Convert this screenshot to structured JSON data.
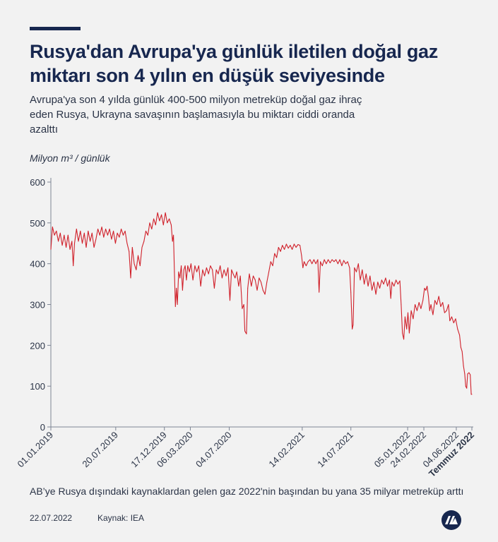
{
  "header": {
    "title": "Rusya'dan Avrupa'ya günlük iletilen doğal gaz miktarı son 4 yılın en düşük seviyesinde",
    "subtitle": "Avrupa'ya son 4 yılda günlük 400-500 milyon metreküp doğal gaz ihraç eden Rusya, Ukrayna savaşının başlamasıyla bu miktarı ciddi oranda azalttı"
  },
  "footer": {
    "note": "AB’ye Rusya dışındaki kaynaklardan gelen gaz 2022'nin başından bu yana 35 milyar metreküp arttı",
    "date": "22.07.2022",
    "source": "Kaynak: IEA"
  },
  "colors": {
    "line": "#d0202a",
    "title": "#17274f",
    "background": "#f2f2f2"
  },
  "logo_icon": "aa-logo-icon",
  "chart_data": {
    "type": "line",
    "title": "Rusya'dan Avrupa'ya günlük iletilen doğal gaz miktarı son 4 yılın en düşük seviyesinde",
    "ylabel": "Milyon m³ / günlük",
    "ylim": [
      0,
      600
    ],
    "yticks": [
      0,
      100,
      200,
      300,
      400,
      500,
      600
    ],
    "xlim": [
      "2019-01-01",
      "2022-07-22"
    ],
    "xticks": [
      {
        "date": "2019-01-01",
        "label": "01.01.2019"
      },
      {
        "date": "2019-07-20",
        "label": "20.07.2019"
      },
      {
        "date": "2019-12-17",
        "label": "17.12.2019"
      },
      {
        "date": "2020-03-06",
        "label": "06.03.2020"
      },
      {
        "date": "2020-07-04",
        "label": "04.07.2020"
      },
      {
        "date": "2021-02-14",
        "label": "14.02.2021"
      },
      {
        "date": "2021-07-14",
        "label": "14.07.2021"
      },
      {
        "date": "2022-01-05",
        "label": "05.01.2022"
      },
      {
        "date": "2022-02-24",
        "label": "24.02.2022"
      },
      {
        "date": "2022-06-04",
        "label": "04.06.2022"
      },
      {
        "date": "2022-07-22",
        "label": "Temmuz 2022",
        "bold": true
      }
    ],
    "grid": false,
    "series": [
      {
        "color": "#d0202a",
        "points": [
          [
            "2019-01-01",
            435
          ],
          [
            "2019-01-06",
            490
          ],
          [
            "2019-01-12",
            470
          ],
          [
            "2019-01-18",
            480
          ],
          [
            "2019-01-24",
            455
          ],
          [
            "2019-01-30",
            475
          ],
          [
            "2019-02-05",
            445
          ],
          [
            "2019-02-11",
            470
          ],
          [
            "2019-02-17",
            440
          ],
          [
            "2019-02-23",
            470
          ],
          [
            "2019-03-01",
            435
          ],
          [
            "2019-03-07",
            455
          ],
          [
            "2019-03-11",
            395
          ],
          [
            "2019-03-15",
            450
          ],
          [
            "2019-03-21",
            485
          ],
          [
            "2019-03-27",
            455
          ],
          [
            "2019-04-02",
            480
          ],
          [
            "2019-04-08",
            450
          ],
          [
            "2019-04-14",
            475
          ],
          [
            "2019-04-20",
            440
          ],
          [
            "2019-04-26",
            480
          ],
          [
            "2019-05-02",
            455
          ],
          [
            "2019-05-08",
            475
          ],
          [
            "2019-05-14",
            440
          ],
          [
            "2019-05-20",
            460
          ],
          [
            "2019-05-26",
            485
          ],
          [
            "2019-06-01",
            470
          ],
          [
            "2019-06-07",
            490
          ],
          [
            "2019-06-13",
            465
          ],
          [
            "2019-06-19",
            485
          ],
          [
            "2019-06-25",
            470
          ],
          [
            "2019-07-01",
            485
          ],
          [
            "2019-07-07",
            460
          ],
          [
            "2019-07-13",
            480
          ],
          [
            "2019-07-19",
            450
          ],
          [
            "2019-07-25",
            475
          ],
          [
            "2019-07-31",
            465
          ],
          [
            "2019-08-06",
            485
          ],
          [
            "2019-08-12",
            470
          ],
          [
            "2019-08-18",
            480
          ],
          [
            "2019-08-24",
            450
          ],
          [
            "2019-08-30",
            430
          ],
          [
            "2019-09-04",
            365
          ],
          [
            "2019-09-09",
            440
          ],
          [
            "2019-09-15",
            400
          ],
          [
            "2019-09-21",
            385
          ],
          [
            "2019-09-27",
            420
          ],
          [
            "2019-10-03",
            395
          ],
          [
            "2019-10-09",
            440
          ],
          [
            "2019-10-15",
            455
          ],
          [
            "2019-10-21",
            480
          ],
          [
            "2019-10-27",
            470
          ],
          [
            "2019-11-02",
            500
          ],
          [
            "2019-11-08",
            485
          ],
          [
            "2019-11-14",
            510
          ],
          [
            "2019-11-20",
            495
          ],
          [
            "2019-11-26",
            525
          ],
          [
            "2019-12-02",
            505
          ],
          [
            "2019-12-08",
            520
          ],
          [
            "2019-12-14",
            495
          ],
          [
            "2019-12-20",
            525
          ],
          [
            "2019-12-26",
            500
          ],
          [
            "2020-01-01",
            510
          ],
          [
            "2020-01-07",
            495
          ],
          [
            "2020-01-11",
            455
          ],
          [
            "2020-01-14",
            470
          ],
          [
            "2020-01-17",
            380
          ],
          [
            "2020-01-20",
            295
          ],
          [
            "2020-01-23",
            340
          ],
          [
            "2020-01-26",
            300
          ],
          [
            "2020-01-30",
            380
          ],
          [
            "2020-02-03",
            365
          ],
          [
            "2020-02-07",
            395
          ],
          [
            "2020-02-11",
            335
          ],
          [
            "2020-02-15",
            385
          ],
          [
            "2020-02-19",
            395
          ],
          [
            "2020-02-23",
            360
          ],
          [
            "2020-02-27",
            395
          ],
          [
            "2020-03-03",
            380
          ],
          [
            "2020-03-08",
            400
          ],
          [
            "2020-03-14",
            360
          ],
          [
            "2020-03-20",
            395
          ],
          [
            "2020-03-26",
            380
          ],
          [
            "2020-04-01",
            395
          ],
          [
            "2020-04-07",
            345
          ],
          [
            "2020-04-13",
            385
          ],
          [
            "2020-04-19",
            370
          ],
          [
            "2020-04-25",
            390
          ],
          [
            "2020-05-01",
            375
          ],
          [
            "2020-05-07",
            395
          ],
          [
            "2020-05-13",
            385
          ],
          [
            "2020-05-19",
            340
          ],
          [
            "2020-05-25",
            385
          ],
          [
            "2020-05-31",
            375
          ],
          [
            "2020-06-06",
            395
          ],
          [
            "2020-06-12",
            365
          ],
          [
            "2020-06-18",
            385
          ],
          [
            "2020-06-24",
            370
          ],
          [
            "2020-06-30",
            390
          ],
          [
            "2020-07-06",
            310
          ],
          [
            "2020-07-11",
            385
          ],
          [
            "2020-07-16",
            375
          ],
          [
            "2020-07-22",
            365
          ],
          [
            "2020-07-27",
            380
          ],
          [
            "2020-08-02",
            345
          ],
          [
            "2020-08-07",
            370
          ],
          [
            "2020-08-13",
            290
          ],
          [
            "2020-08-18",
            300
          ],
          [
            "2020-08-21",
            235
          ],
          [
            "2020-08-26",
            228
          ],
          [
            "2020-08-30",
            340
          ],
          [
            "2020-09-04",
            375
          ],
          [
            "2020-09-10",
            345
          ],
          [
            "2020-09-16",
            370
          ],
          [
            "2020-09-22",
            360
          ],
          [
            "2020-09-28",
            335
          ],
          [
            "2020-10-04",
            365
          ],
          [
            "2020-10-10",
            355
          ],
          [
            "2020-10-16",
            335
          ],
          [
            "2020-10-22",
            325
          ],
          [
            "2020-10-28",
            355
          ],
          [
            "2020-11-03",
            380
          ],
          [
            "2020-11-09",
            405
          ],
          [
            "2020-11-15",
            395
          ],
          [
            "2020-11-21",
            425
          ],
          [
            "2020-11-27",
            415
          ],
          [
            "2020-12-03",
            440
          ],
          [
            "2020-12-09",
            430
          ],
          [
            "2020-12-15",
            445
          ],
          [
            "2020-12-21",
            435
          ],
          [
            "2020-12-27",
            448
          ],
          [
            "2021-01-02",
            438
          ],
          [
            "2021-01-08",
            445
          ],
          [
            "2021-01-14",
            435
          ],
          [
            "2021-01-20",
            448
          ],
          [
            "2021-01-26",
            440
          ],
          [
            "2021-02-01",
            447
          ],
          [
            "2021-02-07",
            445
          ],
          [
            "2021-02-12",
            420
          ],
          [
            "2021-02-16",
            390
          ],
          [
            "2021-02-20",
            405
          ],
          [
            "2021-02-26",
            395
          ],
          [
            "2021-03-04",
            405
          ],
          [
            "2021-03-10",
            410
          ],
          [
            "2021-03-16",
            400
          ],
          [
            "2021-03-22",
            410
          ],
          [
            "2021-03-28",
            400
          ],
          [
            "2021-04-03",
            410
          ],
          [
            "2021-04-07",
            330
          ],
          [
            "2021-04-11",
            405
          ],
          [
            "2021-04-17",
            395
          ],
          [
            "2021-04-23",
            410
          ],
          [
            "2021-04-29",
            400
          ],
          [
            "2021-05-05",
            410
          ],
          [
            "2021-05-11",
            402
          ],
          [
            "2021-05-17",
            410
          ],
          [
            "2021-05-23",
            405
          ],
          [
            "2021-05-29",
            410
          ],
          [
            "2021-06-04",
            400
          ],
          [
            "2021-06-10",
            410
          ],
          [
            "2021-06-16",
            395
          ],
          [
            "2021-06-22",
            408
          ],
          [
            "2021-06-28",
            400
          ],
          [
            "2021-07-04",
            405
          ],
          [
            "2021-07-10",
            390
          ],
          [
            "2021-07-14",
            330
          ],
          [
            "2021-07-18",
            240
          ],
          [
            "2021-07-21",
            250
          ],
          [
            "2021-07-25",
            390
          ],
          [
            "2021-07-31",
            380
          ],
          [
            "2021-08-06",
            400
          ],
          [
            "2021-08-12",
            360
          ],
          [
            "2021-08-18",
            385
          ],
          [
            "2021-08-24",
            350
          ],
          [
            "2021-08-30",
            375
          ],
          [
            "2021-09-05",
            345
          ],
          [
            "2021-09-11",
            370
          ],
          [
            "2021-09-17",
            335
          ],
          [
            "2021-09-23",
            355
          ],
          [
            "2021-09-29",
            325
          ],
          [
            "2021-10-05",
            355
          ],
          [
            "2021-10-11",
            340
          ],
          [
            "2021-10-17",
            360
          ],
          [
            "2021-10-23",
            350
          ],
          [
            "2021-10-29",
            365
          ],
          [
            "2021-11-04",
            345
          ],
          [
            "2021-11-10",
            360
          ],
          [
            "2021-11-14",
            315
          ],
          [
            "2021-11-18",
            355
          ],
          [
            "2021-11-24",
            345
          ],
          [
            "2021-11-30",
            360
          ],
          [
            "2021-12-06",
            350
          ],
          [
            "2021-12-12",
            358
          ],
          [
            "2021-12-16",
            300
          ],
          [
            "2021-12-20",
            230
          ],
          [
            "2021-12-24",
            215
          ],
          [
            "2021-12-28",
            270
          ],
          [
            "2022-01-02",
            240
          ],
          [
            "2022-01-06",
            280
          ],
          [
            "2022-01-10",
            230
          ],
          [
            "2022-01-16",
            285
          ],
          [
            "2022-01-22",
            265
          ],
          [
            "2022-01-28",
            300
          ],
          [
            "2022-02-03",
            285
          ],
          [
            "2022-02-09",
            305
          ],
          [
            "2022-02-15",
            290
          ],
          [
            "2022-02-21",
            310
          ],
          [
            "2022-02-26",
            340
          ],
          [
            "2022-03-02",
            335
          ],
          [
            "2022-03-06",
            345
          ],
          [
            "2022-03-10",
            320
          ],
          [
            "2022-03-14",
            285
          ],
          [
            "2022-03-18",
            300
          ],
          [
            "2022-03-24",
            275
          ],
          [
            "2022-03-30",
            310
          ],
          [
            "2022-04-05",
            300
          ],
          [
            "2022-04-11",
            320
          ],
          [
            "2022-04-17",
            295
          ],
          [
            "2022-04-23",
            305
          ],
          [
            "2022-04-29",
            280
          ],
          [
            "2022-05-05",
            285
          ],
          [
            "2022-05-11",
            300
          ],
          [
            "2022-05-15",
            260
          ],
          [
            "2022-05-21",
            270
          ],
          [
            "2022-05-27",
            255
          ],
          [
            "2022-06-02",
            265
          ],
          [
            "2022-06-08",
            240
          ],
          [
            "2022-06-14",
            225
          ],
          [
            "2022-06-18",
            195
          ],
          [
            "2022-06-22",
            185
          ],
          [
            "2022-06-26",
            150
          ],
          [
            "2022-06-30",
            130
          ],
          [
            "2022-07-03",
            100
          ],
          [
            "2022-07-06",
            95
          ],
          [
            "2022-07-09",
            130
          ],
          [
            "2022-07-13",
            133
          ],
          [
            "2022-07-17",
            128
          ],
          [
            "2022-07-20",
            80
          ],
          [
            "2022-07-22",
            80
          ]
        ]
      }
    ]
  }
}
